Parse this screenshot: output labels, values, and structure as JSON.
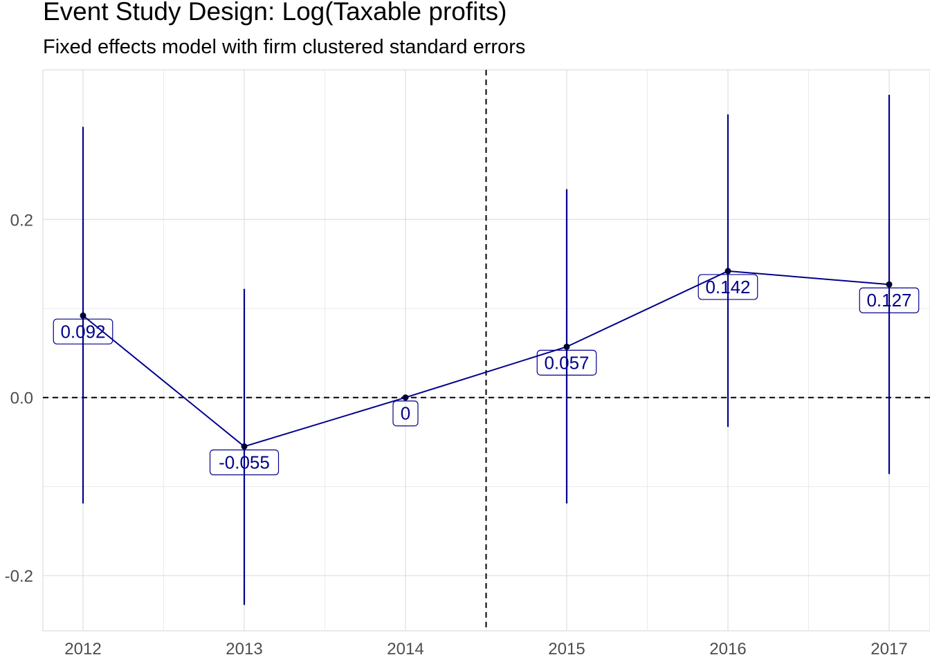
{
  "chart_data": {
    "type": "line",
    "title": "Event Study Design: Log(Taxable profits)",
    "subtitle": "Fixed effects model with firm clustered standard errors",
    "xlabel": "",
    "ylabel": "",
    "x": [
      "2012",
      "2013",
      "2014",
      "2015",
      "2016",
      "2017"
    ],
    "series": [
      {
        "values": [
          0.092,
          -0.055,
          0,
          0.057,
          0.142,
          0.127
        ],
        "ci_low": [
          -0.119,
          -0.233,
          0,
          -0.119,
          -0.033,
          -0.086
        ],
        "ci_high": [
          0.304,
          0.122,
          0,
          0.234,
          0.318,
          0.34
        ],
        "point_labels": [
          "0.092",
          "-0.055",
          "0",
          "0.057",
          "0.142",
          "0.127"
        ],
        "color": "#00008b"
      }
    ],
    "ylim": [
      -0.262,
      0.368
    ],
    "y_ticks": [
      -0.2,
      0.0,
      0.2
    ],
    "y_tick_labels": [
      "-0.2",
      "0.0",
      "0.2"
    ],
    "reference_lines": {
      "horizontal_y": 0,
      "vertical_x": 2014.5
    },
    "grid": true,
    "legend": "none"
  }
}
